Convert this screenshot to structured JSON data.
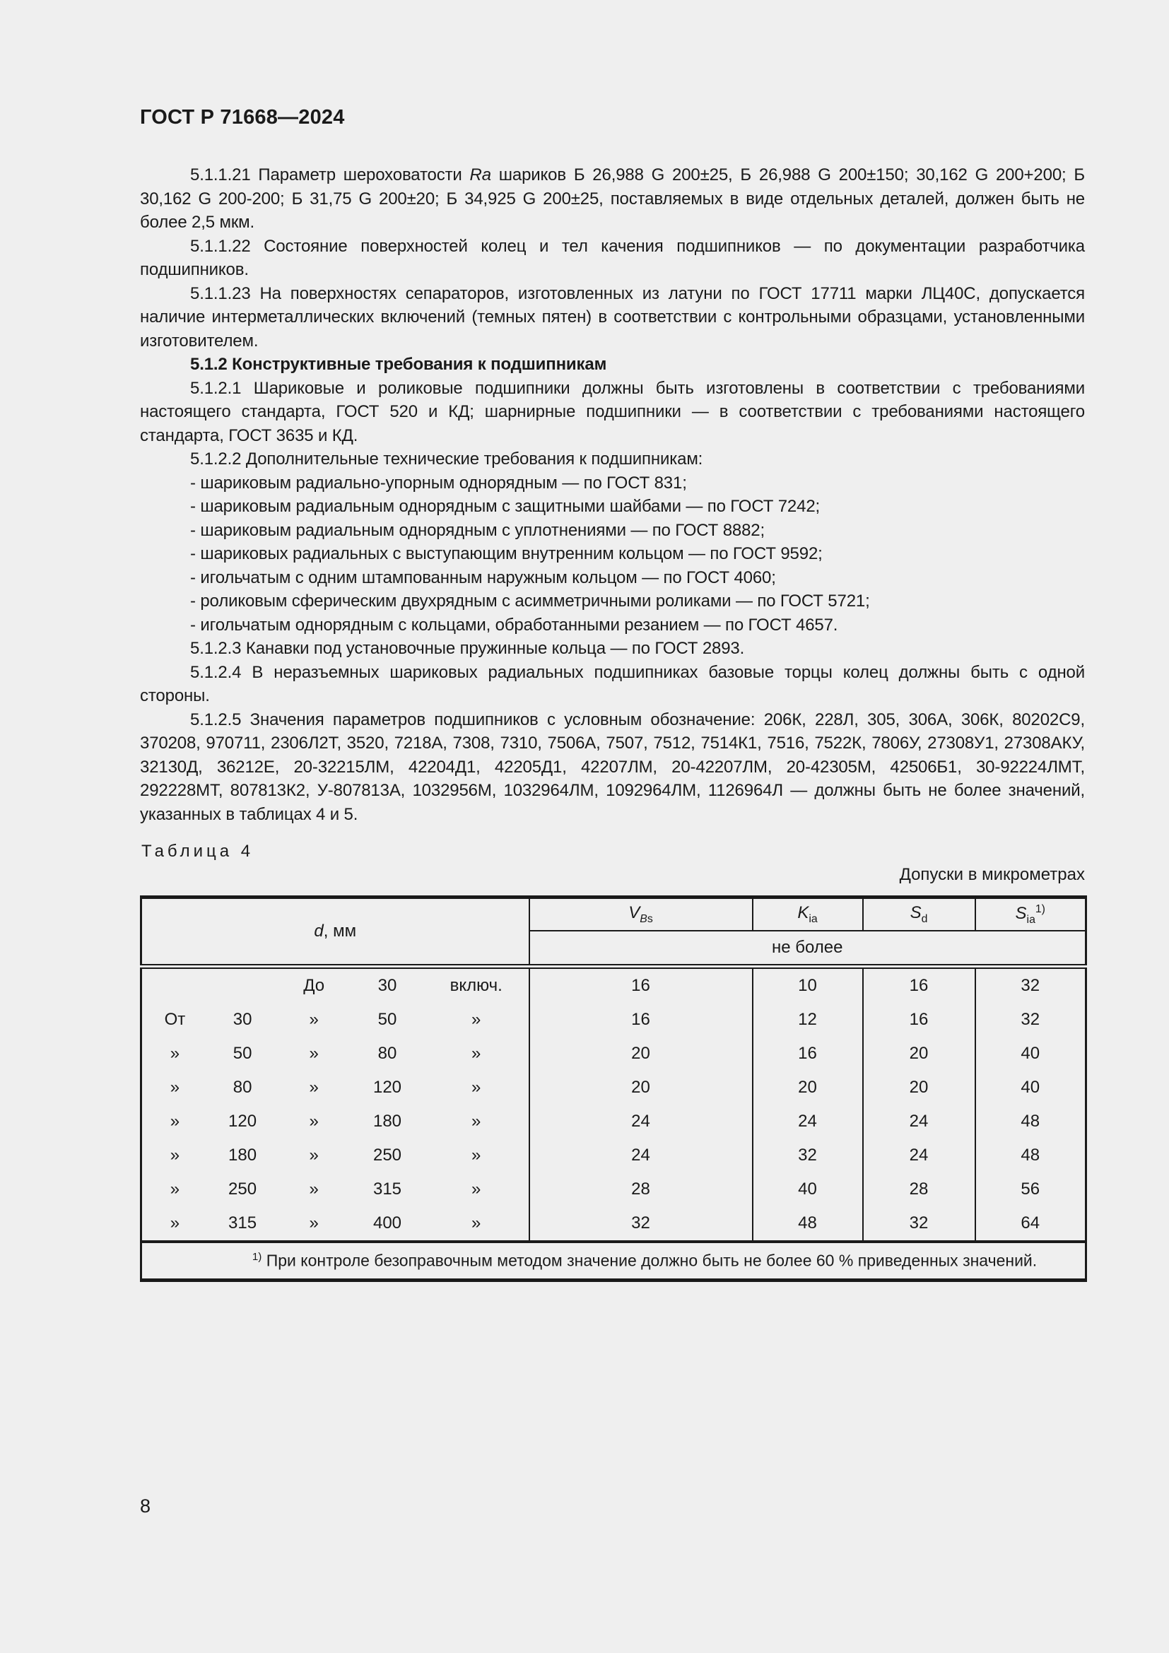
{
  "page": {
    "header": "ГОСТ Р 71668—2024",
    "page_number": "8"
  },
  "paragraphs": [
    {
      "segments": [
        {
          "text": "5.1.1.21 Параметр шероховатости "
        },
        {
          "text": "Ra",
          "italic": true
        },
        {
          "text": " шариков Б 26,988 G 200±25, Б 26,988 G 200±150; 30,162 G 200+200; Б 30,162 G 200-200; Б 31,75 G 200±20; Б 34,925 G 200±25, поставляемых в виде отдельных деталей, должен быть не более 2,5 мкм."
        }
      ]
    },
    {
      "segments": [
        {
          "text": "5.1.1.22 Состояние поверхностей колец и тел качения подшипников — по документации разработчика подшипников."
        }
      ]
    },
    {
      "segments": [
        {
          "text": "5.1.1.23 На поверхностях сепараторов, изготовленных из латуни по ГОСТ 17711 марки ЛЦ40С, допускается наличие интерметаллических включений (темных пятен) в соответствии с контрольными образцами, установленными изготовителем."
        }
      ]
    },
    {
      "bold": true,
      "segments": [
        {
          "text": "5.1.2 Конструктивные требования к подшипникам"
        }
      ]
    },
    {
      "segments": [
        {
          "text": "5.1.2.1 Шариковые и роликовые подшипники должны быть изготовлены в соответствии с требованиями настоящего стандарта, ГОСТ 520 и КД; шарнирные подшипники — в соответствии с требованиями настоящего стандарта, ГОСТ 3635 и КД."
        }
      ]
    },
    {
      "segments": [
        {
          "text": "5.1.2.2 Дополнительные технические требования к подшипникам:"
        }
      ]
    },
    {
      "segments": [
        {
          "text": "- шариковым радиально-упорным однорядным — по ГОСТ 831;"
        }
      ]
    },
    {
      "segments": [
        {
          "text": "- шариковым радиальным однорядным с защитными шайбами — по ГОСТ 7242;"
        }
      ]
    },
    {
      "segments": [
        {
          "text": "- шариковым радиальным однорядным с уплотнениями — по ГОСТ 8882;"
        }
      ]
    },
    {
      "segments": [
        {
          "text": "- шариковых радиальных с выступающим внутренним кольцом — по ГОСТ 9592;"
        }
      ]
    },
    {
      "segments": [
        {
          "text": "- игольчатым с одним штампованным наружным кольцом — по ГОСТ 4060;"
        }
      ]
    },
    {
      "segments": [
        {
          "text": "- роликовым сферическим двухрядным с асимметричными роликами — по ГОСТ 5721;"
        }
      ]
    },
    {
      "segments": [
        {
          "text": "- игольчатым однорядным с кольцами, обработанными резанием — по ГОСТ 4657."
        }
      ]
    },
    {
      "segments": [
        {
          "text": "5.1.2.3 Канавки под установочные пружинные кольца — по ГОСТ 2893."
        }
      ]
    },
    {
      "segments": [
        {
          "text": "5.1.2.4 В неразъемных шариковых радиальных подшипниках базовые торцы колец должны быть с одной стороны."
        }
      ]
    },
    {
      "segments": [
        {
          "text": "5.1.2.5 Значения параметров подшипников с условным обозначение: 206К, 228Л, 305, 306А, 306К, 80202С9, 370208, 970711, 2306Л2Т, 3520, 7218А, 7308, 7310, 7506А, 7507, 7512, 7514К1, 7516, 7522К, 7806У, 27308У1, 27308АКУ, 32130Д, 36212Е, 20-32215ЛМ, 42204Д1, 42205Д1, 42207ЛМ, 20-42207ЛМ, 20-42305М, 42506Б1, 30-92224ЛМТ, 292228МТ, 807813К2, У-807813А, 1032956М, 1032964ЛМ, 1092964ЛМ, 1126964Л — должны быть не более значений, указанных в таблицах 4 и 5."
        }
      ]
    }
  ],
  "table": {
    "title": "Таблица 4",
    "units_note": "Допуски в микрометрах",
    "col1_header": {
      "symbol": "d",
      "unit": ", мм"
    },
    "value_headers": [
      {
        "symbol": "V",
        "sub_italic": "B",
        "sub": "s"
      },
      {
        "symbol": "K",
        "sub": "ia"
      },
      {
        "symbol": "S",
        "sub": "d"
      },
      {
        "symbol": "S",
        "sub": "ia",
        "sup": "1)"
      }
    ],
    "subheader": "не более",
    "rows": [
      {
        "range": [
          "",
          "",
          "До",
          "30",
          "включ."
        ],
        "values": [
          "16",
          "10",
          "16",
          "32"
        ]
      },
      {
        "range": [
          "От",
          "30",
          "»",
          "50",
          "»"
        ],
        "values": [
          "16",
          "12",
          "16",
          "32"
        ]
      },
      {
        "range": [
          "»",
          "50",
          "»",
          "80",
          "»"
        ],
        "values": [
          "20",
          "16",
          "20",
          "40"
        ]
      },
      {
        "range": [
          "»",
          "80",
          "»",
          "120",
          "»"
        ],
        "values": [
          "20",
          "20",
          "20",
          "40"
        ]
      },
      {
        "range": [
          "»",
          "120",
          "»",
          "180",
          "»"
        ],
        "values": [
          "24",
          "24",
          "24",
          "48"
        ]
      },
      {
        "range": [
          "»",
          "180",
          "»",
          "250",
          "»"
        ],
        "values": [
          "24",
          "32",
          "24",
          "48"
        ]
      },
      {
        "range": [
          "»",
          "250",
          "»",
          "315",
          "»"
        ],
        "values": [
          "28",
          "40",
          "28",
          "56"
        ]
      },
      {
        "range": [
          "»",
          "315",
          "»",
          "400",
          "»"
        ],
        "values": [
          "32",
          "48",
          "32",
          "64"
        ]
      }
    ],
    "footnote_sup": "1)",
    "footnote": "При контроле безоправочным методом значение должно быть не более 60 % приведенных значений."
  }
}
